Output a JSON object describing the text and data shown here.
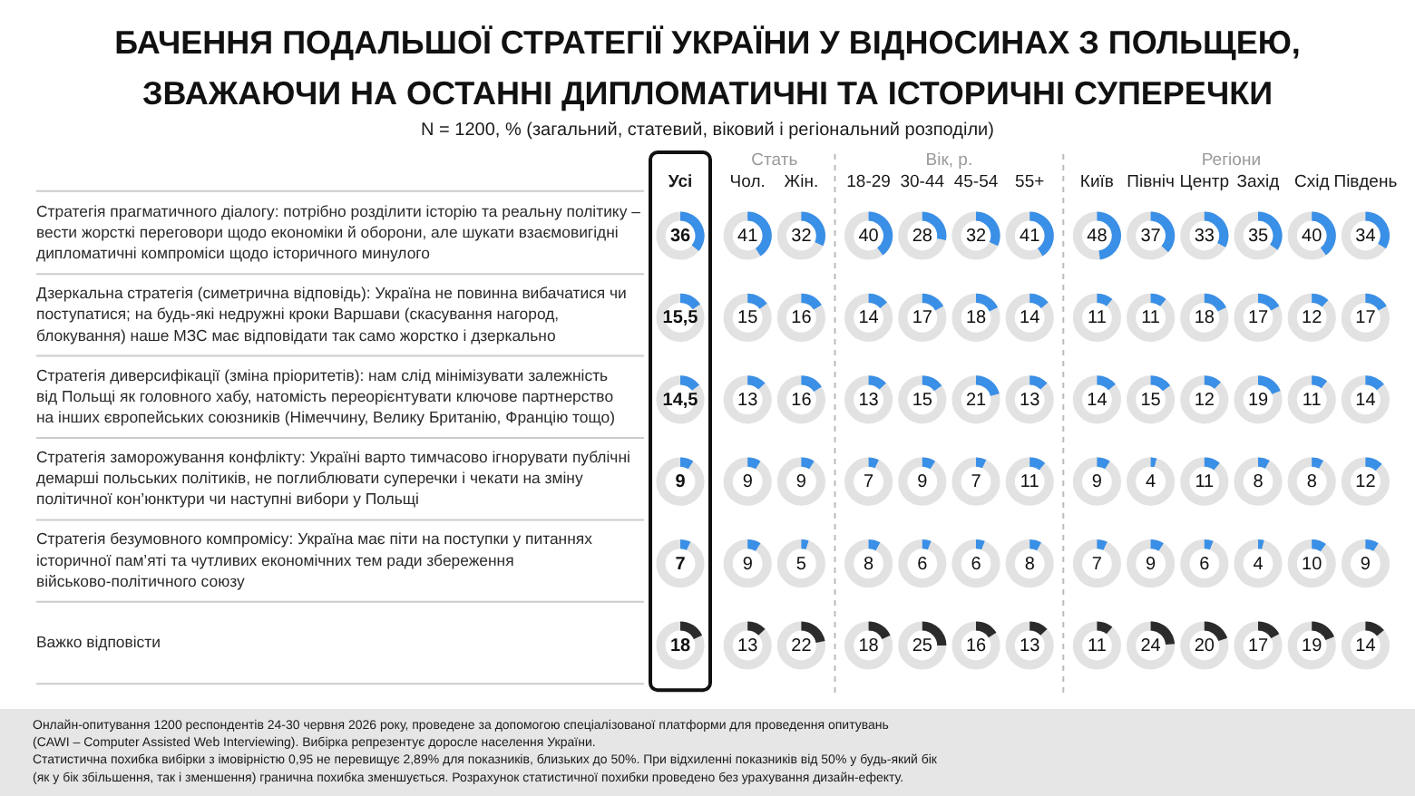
{
  "chart_data": {
    "type": "other",
    "title": "БАЧЕННЯ ПОДАЛЬШОЇ СТРАТЕГІЇ УКРАЇНИ У ВІДНОСИНАХ З ПОЛЬЩЕЮ,\nЗВАЖАЮЧИ НА ОСТАННІ ДИПЛОМАТИЧНІ ТА ІСТОРИЧНІ СУПЕРЕЧКИ",
    "subtitle": "N = 1200, % (загальний, статевий, віковий і регіональний розподіли)",
    "categories": [
      "Усі",
      "Чол.",
      "Жін.",
      "18-29",
      "30-44",
      "45-54",
      "55+",
      "Київ",
      "Північ",
      "Центр",
      "Захід",
      "Схід",
      "Південь"
    ],
    "series": [
      {
        "name": "Стратегія прагматичного діалогу: потрібно розділити історію та реальну політику –\nвести жорсткі переговори щодо економіки й оборони, але шукати взаємовигідні\nдипломатичні компроміси щодо історичного минулого",
        "colors": [
          "#3a8fe6",
          "#3a8fe6",
          "#3a8fe6",
          "#3a8fe6",
          "#3a8fe6",
          "#3a8fe6",
          "#3a8fe6",
          "#3a8fe6",
          "#3a8fe6",
          "#3a8fe6",
          "#3a8fe6",
          "#3a8fe6",
          "#3a8fe6"
        ],
        "values": [
          36,
          41,
          32,
          40,
          28,
          32,
          41,
          48,
          37,
          33,
          35,
          40,
          34
        ],
        "value_labels": [
          "36",
          "41",
          "32",
          "40",
          "28",
          "32",
          "41",
          "48",
          "37",
          "33",
          "35",
          "40",
          "34"
        ]
      },
      {
        "name": "Дзеркальна стратегія (симетрична відповідь): Україна не повинна вибачатися чи\nпоступатися; на будь-які недружні кроки Варшави (скасування нагород,\nблокування) наше МЗС має відповідати так само жорстко і дзеркально",
        "colors": [
          "#3a8fe6",
          "#3a8fe6",
          "#3a8fe6",
          "#3a8fe6",
          "#3a8fe6",
          "#3a8fe6",
          "#3a8fe6",
          "#3a8fe6",
          "#3a8fe6",
          "#3a8fe6",
          "#3a8fe6",
          "#3a8fe6",
          "#3a8fe6"
        ],
        "values": [
          15.5,
          15,
          16,
          14,
          17,
          18,
          14,
          11,
          11,
          18,
          17,
          12,
          17
        ],
        "value_labels": [
          "15,5",
          "15",
          "16",
          "14",
          "17",
          "18",
          "14",
          "11",
          "11",
          "18",
          "17",
          "12",
          "17"
        ]
      },
      {
        "name": "Стратегія диверсифікації (зміна пріоритетів): нам слід мінімізувати залежність\nвід Польщі як головного хабу, натомість переорієнтувати ключове партнерство\nна інших європейських союзників (Німеччину, Велику Британію, Францію тощо)",
        "colors": [
          "#3a8fe6",
          "#3a8fe6",
          "#3a8fe6",
          "#3a8fe6",
          "#3a8fe6",
          "#3a8fe6",
          "#3a8fe6",
          "#3a8fe6",
          "#3a8fe6",
          "#3a8fe6",
          "#3a8fe6",
          "#3a8fe6",
          "#3a8fe6"
        ],
        "values": [
          14.5,
          13,
          16,
          13,
          15,
          21,
          13,
          14,
          15,
          12,
          19,
          11,
          14
        ],
        "value_labels": [
          "14,5",
          "13",
          "16",
          "13",
          "15",
          "21",
          "13",
          "14",
          "15",
          "12",
          "19",
          "11",
          "14"
        ]
      },
      {
        "name": "Стратегія заморожування конфлікту: Україні варто тимчасово ігнорувати публічні\nдемарші польських політиків, не поглиблювати суперечки і чекати на зміну\nполітичної кон’юнктури чи наступні вибори у Польщі",
        "colors": [
          "#3a8fe6",
          "#3a8fe6",
          "#3a8fe6",
          "#3a8fe6",
          "#3a8fe6",
          "#3a8fe6",
          "#3a8fe6",
          "#3a8fe6",
          "#3a8fe6",
          "#3a8fe6",
          "#3a8fe6",
          "#3a8fe6",
          "#3a8fe6"
        ],
        "values": [
          9,
          9,
          9,
          7,
          9,
          7,
          11,
          9,
          4,
          11,
          8,
          8,
          12
        ],
        "value_labels": [
          "9",
          "9",
          "9",
          "7",
          "9",
          "7",
          "11",
          "9",
          "4",
          "11",
          "8",
          "8",
          "12"
        ]
      },
      {
        "name": "Стратегія безумовного компромісу: Україна має піти на поступки у питаннях\nісторичної пам’яті та чутливих економічних тем ради збереження\nвійськово-політичного союзу",
        "colors": [
          "#3a8fe6",
          "#3a8fe6",
          "#3a8fe6",
          "#3a8fe6",
          "#3a8fe6",
          "#3a8fe6",
          "#3a8fe6",
          "#3a8fe6",
          "#3a8fe6",
          "#3a8fe6",
          "#3a8fe6",
          "#3a8fe6",
          "#3a8fe6"
        ],
        "values": [
          7,
          9,
          5,
          8,
          6,
          6,
          8,
          7,
          9,
          6,
          4,
          10,
          9
        ],
        "value_labels": [
          "7",
          "9",
          "5",
          "8",
          "6",
          "6",
          "8",
          "7",
          "9",
          "6",
          "4",
          "10",
          "9"
        ]
      },
      {
        "name": "Важко відповісти",
        "colors": [
          "#2b2b2b",
          "#2b2b2b",
          "#2b2b2b",
          "#2b2b2b",
          "#2b2b2b",
          "#2b2b2b",
          "#2b2b2b",
          "#2b2b2b",
          "#2b2b2b",
          "#2b2b2b",
          "#2b2b2b",
          "#2b2b2b",
          "#2b2b2b"
        ],
        "values": [
          18,
          13,
          22,
          18,
          25,
          16,
          13,
          11,
          24,
          20,
          17,
          19,
          14
        ],
        "value_labels": [
          "18",
          "13",
          "22",
          "18",
          "25",
          "16",
          "13",
          "11",
          "24",
          "20",
          "17",
          "19",
          "14"
        ]
      }
    ],
    "annotations": [
      "Стать",
      "Вік, р.",
      "Регіони",
      "Онлайн-опитування 1200 респондентів 24-30 червня 2026 року, проведене за допомогою спеціалізованої платформи для проведення опитувань\n(CAWI – Computer Assisted Web Interviewing). Вибірка репрезентує доросле населення України.\nСтатистична похибка вибірки з імовірністю 0,95 не перевищує 2,89% для показників, близьких до 50%. При відхиленні показників від 50% у будь-який бік\n(як у бік збільшення, так і зменшення) гранична похибка зменшується. Розрахунок статистичної похибки проведено без урахування дизайн-ефекту."
    ]
  }
}
